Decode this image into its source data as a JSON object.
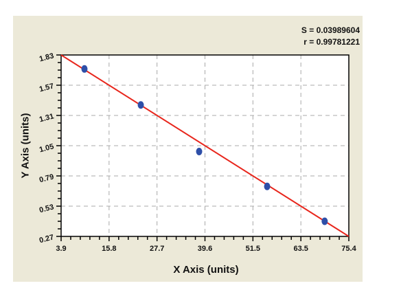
{
  "stats": {
    "s_label": "S = 0.03989604",
    "r_label": "r = 0.99781221"
  },
  "chart_data": {
    "type": "scatter",
    "title": "",
    "xlabel": "X Axis (units)",
    "ylabel": "Y Axis (units)",
    "xlim": [
      3.9,
      75.4
    ],
    "ylim": [
      0.27,
      1.83
    ],
    "x_ticks": [
      "3.9",
      "15.8",
      "27.7",
      "39.6",
      "51.5",
      "63.5",
      "75.4"
    ],
    "y_ticks": [
      "0.27",
      "0.53",
      "0.79",
      "1.05",
      "1.31",
      "1.57",
      "1.83"
    ],
    "grid": true,
    "series": [
      {
        "name": "data points",
        "type": "scatter",
        "color": "#2e4fa8",
        "x": [
          9.7,
          23.7,
          38.2,
          55.1,
          69.4
        ],
        "y": [
          1.71,
          1.4,
          1.0,
          0.7,
          0.4
        ]
      },
      {
        "name": "fit line",
        "type": "line",
        "color": "#e8261c",
        "x": [
          3.9,
          75.4
        ],
        "y": [
          1.83,
          0.27
        ]
      }
    ],
    "annotations": [
      "S = 0.03989604",
      "r = 0.99781221"
    ]
  },
  "axes": {
    "xlabel": "X Axis (units)",
    "ylabel": "Y Axis (units)"
  }
}
